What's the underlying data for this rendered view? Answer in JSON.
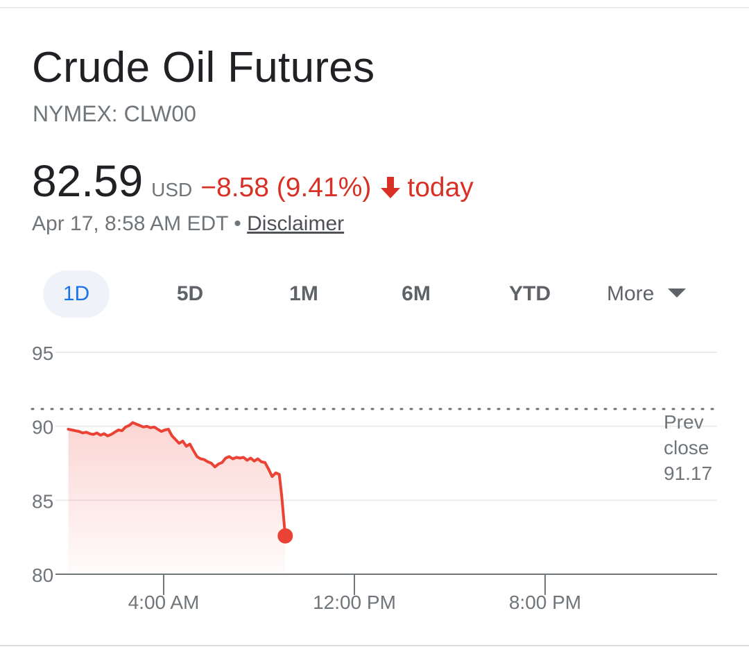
{
  "header": {
    "title": "Crude Oil Futures",
    "ticker": "NYMEX: CLW00"
  },
  "quote": {
    "price": "82.59",
    "currency": "USD",
    "change": "−8.58 (9.41%)",
    "direction_icon": "arrow-down-icon",
    "period": "today",
    "timestamp": "Apr 17, 8:58 AM EDT",
    "separator": "•",
    "disclaimer": "Disclaimer"
  },
  "tabs": [
    {
      "label": "1D",
      "selected": true
    },
    {
      "label": "5D",
      "selected": false
    },
    {
      "label": "1M",
      "selected": false
    },
    {
      "label": "6M",
      "selected": false
    },
    {
      "label": "YTD",
      "selected": false
    },
    {
      "label": "More",
      "selected": false
    }
  ],
  "colors": {
    "negative": "#d93025",
    "accent": "#1a73e8",
    "selected_tab_bg": "#eff3f9",
    "text_primary": "#202124",
    "text_secondary": "#70757a"
  },
  "chart_data": {
    "type": "area",
    "y_ticks": [
      "95",
      "90",
      "85",
      "80"
    ],
    "ylim": [
      80,
      95
    ],
    "x_ticks": [
      "4:00 AM",
      "12:00 PM",
      "8:00 PM"
    ],
    "x_tick_hours": [
      4,
      12,
      20
    ],
    "xlim_hours": [
      -0.5,
      27.2
    ],
    "prev_close": {
      "label_line1": "Prev",
      "label_line2": "close",
      "value": "91.17",
      "level": 91.17
    },
    "grid": true,
    "series": [
      {
        "color": "#ea4335",
        "x_hours": [
          0,
          0.15,
          0.3,
          0.45,
          0.6,
          0.75,
          0.9,
          1.05,
          1.2,
          1.35,
          1.5,
          1.65,
          1.8,
          1.95,
          2.1,
          2.25,
          2.4,
          2.55,
          2.7,
          2.85,
          3.0,
          3.15,
          3.3,
          3.45,
          3.6,
          3.75,
          3.9,
          4.05,
          4.2,
          4.35,
          4.5,
          4.65,
          4.8,
          4.95,
          5.1,
          5.25,
          5.4,
          5.55,
          5.7,
          5.85,
          6.0,
          6.15,
          6.3,
          6.45,
          6.6,
          6.75,
          6.9,
          7.05,
          7.2,
          7.35,
          7.5,
          7.65,
          7.8,
          7.95,
          8.1,
          8.25,
          8.4,
          8.55,
          8.7,
          8.85,
          8.95,
          9.1
        ],
        "values": [
          89.8,
          89.75,
          89.7,
          89.65,
          89.55,
          89.6,
          89.5,
          89.45,
          89.55,
          89.4,
          89.5,
          89.35,
          89.45,
          89.6,
          89.75,
          89.7,
          89.95,
          90.05,
          90.25,
          90.15,
          90.05,
          89.95,
          90.0,
          89.9,
          89.95,
          89.8,
          89.65,
          89.75,
          89.8,
          89.35,
          89.1,
          88.85,
          89.0,
          88.65,
          88.8,
          88.35,
          87.95,
          87.8,
          87.75,
          87.6,
          87.5,
          87.25,
          87.45,
          87.55,
          87.85,
          87.95,
          87.8,
          87.9,
          87.85,
          87.9,
          87.7,
          87.85,
          87.65,
          87.8,
          87.6,
          87.55,
          87.1,
          86.6,
          86.85,
          86.75,
          85.3,
          82.59
        ]
      }
    ],
    "last_value": 82.59
  }
}
